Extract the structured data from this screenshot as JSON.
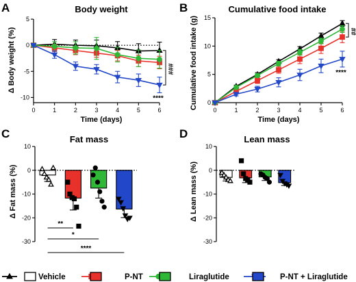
{
  "series_styles": [
    {
      "name": "Vehicle",
      "color": "#000000",
      "marker": "triangle-up",
      "bar_fill": "#ffffff",
      "point_marker": "triangle-up-open"
    },
    {
      "name": "P-NT",
      "color": "#e8312a",
      "marker": "square",
      "bar_fill": "#e8312a",
      "point_marker": "square"
    },
    {
      "name": "Liraglutide",
      "color": "#2fb837",
      "marker": "circle",
      "bar_fill": "#2fb837",
      "point_marker": "circle"
    },
    {
      "name": "P-NT + Liraglutide",
      "color": "#2247c8",
      "marker": "triangle-down",
      "bar_fill": "#2247c8",
      "point_marker": "triangle-down"
    }
  ],
  "chart_data": [
    {
      "panel": "A",
      "type": "line",
      "title": "Body weight",
      "xlabel": "Time (days)",
      "ylabel": "Δ Body weight (%)",
      "xlim": [
        0,
        6
      ],
      "ylim": [
        -11,
        5
      ],
      "xticks": [
        0,
        1,
        2,
        3,
        4,
        5,
        6
      ],
      "yticks": [
        5,
        0,
        -5,
        -10
      ],
      "reference_line_y": 0,
      "x": [
        0,
        1,
        2,
        3,
        4,
        5,
        6
      ],
      "series": [
        {
          "name": "Vehicle",
          "values": [
            0,
            0.2,
            0,
            -0.1,
            -0.5,
            -1.1,
            -1.0
          ],
          "errors": [
            0,
            0.9,
            1.0,
            1.1,
            1.2,
            1.4,
            1.6
          ]
        },
        {
          "name": "P-NT",
          "values": [
            0,
            -0.5,
            -1.0,
            -1.5,
            -2.0,
            -3.0,
            -3.3
          ],
          "errors": [
            0,
            0.7,
            0.8,
            0.8,
            1.0,
            1.1,
            1.2
          ]
        },
        {
          "name": "Liraglutide",
          "values": [
            0,
            -0.2,
            -0.5,
            -0.6,
            -1.8,
            -2.5,
            -2.7
          ],
          "errors": [
            0,
            0.9,
            1.2,
            2.1,
            1.4,
            1.6,
            1.7
          ]
        },
        {
          "name": "P-NT + Liraglutide",
          "values": [
            0,
            -1.8,
            -4.0,
            -4.6,
            -6.1,
            -6.7,
            -7.6
          ],
          "errors": [
            0,
            0.7,
            0.8,
            0.9,
            1.1,
            1.2,
            1.5
          ]
        }
      ],
      "annotations": [
        {
          "text": "****",
          "near": "last point of P-NT + Liraglutide"
        },
        {
          "text": "###",
          "near": "bracket at day 6"
        }
      ]
    },
    {
      "panel": "B",
      "type": "line",
      "title": "Cumulative food intake",
      "xlabel": "Time (days)",
      "ylabel": "Cumulative food intake (g)",
      "xlim": [
        0,
        6
      ],
      "ylim": [
        0,
        15
      ],
      "xticks": [
        0,
        1,
        2,
        3,
        4,
        5,
        6
      ],
      "yticks": [
        0,
        5,
        10,
        15
      ],
      "x": [
        0,
        1,
        2,
        3,
        4,
        5,
        6
      ],
      "series": [
        {
          "name": "Vehicle",
          "values": [
            0,
            2.9,
            5.0,
            7.3,
            9.5,
            11.8,
            14.0
          ],
          "errors": [
            0,
            0.2,
            0.3,
            0.3,
            0.4,
            0.5,
            0.5
          ]
        },
        {
          "name": "P-NT",
          "values": [
            0,
            2.0,
            3.9,
            5.8,
            7.7,
            9.6,
            11.6
          ],
          "errors": [
            0,
            0.3,
            0.5,
            0.6,
            0.8,
            0.9,
            1.0
          ]
        },
        {
          "name": "Liraglutide",
          "values": [
            0,
            2.7,
            4.8,
            6.9,
            8.9,
            10.9,
            13.0
          ],
          "errors": [
            0,
            0.2,
            0.3,
            0.4,
            0.5,
            0.5,
            0.6
          ]
        },
        {
          "name": "P-NT + Liraglutide",
          "values": [
            0,
            1.5,
            2.4,
            3.6,
            4.9,
            6.5,
            7.7
          ],
          "errors": [
            0,
            0.3,
            0.5,
            0.8,
            1.0,
            1.2,
            1.4
          ]
        }
      ],
      "annotations": [
        {
          "text": "****",
          "near": "last point of P-NT + Liraglutide"
        },
        {
          "text": "##",
          "near": "bracket at day 6"
        }
      ]
    },
    {
      "panel": "C",
      "type": "bar",
      "title": "Fat mass",
      "ylabel": "Δ Fat mass (%)",
      "ylim": [
        -30,
        10
      ],
      "yticks": [
        10,
        0,
        -10,
        -20,
        -30
      ],
      "reference_line_y": 0,
      "categories": [
        "Vehicle",
        "P-NT",
        "Liraglutide",
        "P-NT + Liraglutide"
      ],
      "values": [
        -2.0,
        -11.7,
        -7.5,
        -16.3
      ],
      "errors": [
        2.7,
        5.0,
        4.2,
        3.6
      ],
      "points": [
        [
          0.5,
          -1.5,
          -3.0,
          -4.0,
          -6.0,
          1.0
        ],
        [
          -5.0,
          -10.0,
          -11.5,
          -12.0,
          -15.5,
          -23.5
        ],
        [
          -2.0,
          1.0,
          -5.0,
          -9.0,
          -13.0,
          -15.5
        ],
        [
          -12.0,
          -13.5,
          -16.0,
          -19.0,
          -20.5,
          -20.0
        ]
      ],
      "significance": [
        {
          "from": "Vehicle",
          "to": "P-NT",
          "text": "**"
        },
        {
          "from": "Vehicle",
          "to": "Liraglutide",
          "text": "*"
        },
        {
          "from": "Vehicle",
          "to": "P-NT + Liraglutide",
          "text": "****"
        }
      ]
    },
    {
      "panel": "D",
      "type": "bar",
      "title": "Lean mass",
      "ylabel": "Δ Lean mass (%)",
      "ylim": [
        -30,
        10
      ],
      "yticks": [
        10,
        0,
        -10,
        -20,
        -30
      ],
      "reference_line_y": 0,
      "categories": [
        "Vehicle",
        "P-NT",
        "Liraglutide",
        "P-NT + Liraglutide"
      ],
      "values": [
        -3.0,
        -3.2,
        -2.8,
        -5.2
      ],
      "errors": [
        1.5,
        2.0,
        1.5,
        1.2
      ],
      "points": [
        [
          -1.0,
          -2.0,
          -3.0,
          -4.0,
          -4.5
        ],
        [
          4.0,
          -1.5,
          -3.5,
          -4.0,
          -5.0
        ],
        [
          -1.5,
          -2.0,
          -3.0,
          -3.5,
          -5.0
        ],
        [
          -2.0,
          -4.5,
          -5.5,
          -6.0,
          -6.5
        ]
      ]
    }
  ]
}
